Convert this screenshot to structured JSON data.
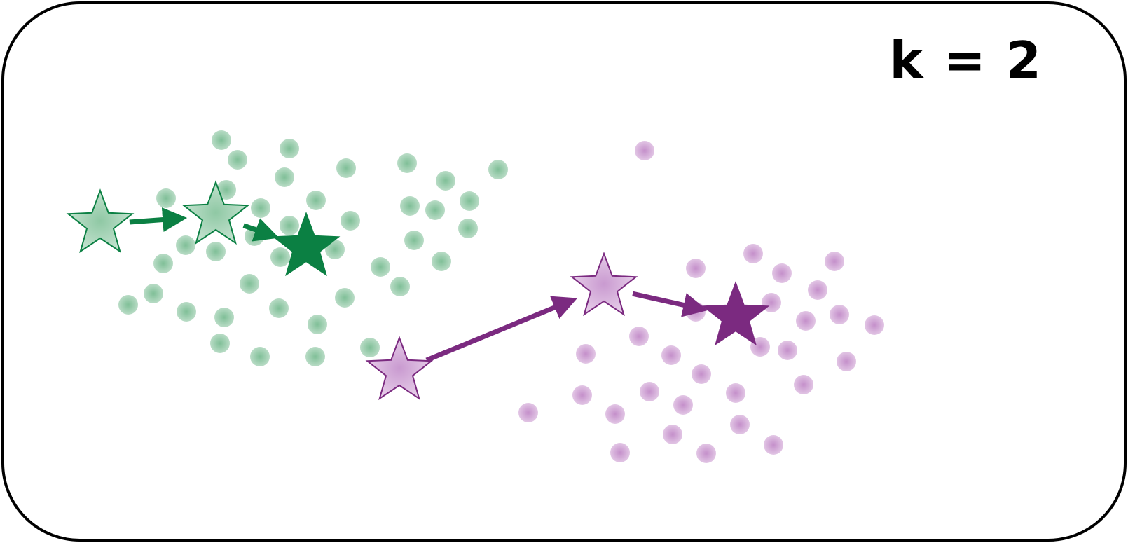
{
  "k_label": "k = 2",
  "colors": {
    "cluster_green": "#0b8043",
    "cluster_green_light": "#a8d5b8",
    "cluster_purple": "#7b2a80",
    "cluster_purple_light": "#d9b3dd"
  },
  "clusters": [
    {
      "name": "green",
      "centroid_path": [
        [
          143,
          320
        ],
        [
          308,
          308
        ],
        [
          437,
          353
        ]
      ],
      "points": [
        [
          316,
          200
        ],
        [
          339,
          228
        ],
        [
          413,
          212
        ],
        [
          494,
          240
        ],
        [
          581,
          233
        ],
        [
          711,
          242
        ],
        [
          237,
          283
        ],
        [
          323,
          271
        ],
        [
          406,
          253
        ],
        [
          451,
          286
        ],
        [
          636,
          258
        ],
        [
          670,
          287
        ],
        [
          372,
          297
        ],
        [
          413,
          322
        ],
        [
          500,
          315
        ],
        [
          585,
          294
        ],
        [
          621,
          300
        ],
        [
          668,
          326
        ],
        [
          363,
          337
        ],
        [
          265,
          350
        ],
        [
          308,
          359
        ],
        [
          400,
          367
        ],
        [
          478,
          356
        ],
        [
          591,
          343
        ],
        [
          233,
          376
        ],
        [
          543,
          381
        ],
        [
          630,
          373
        ],
        [
          356,
          405
        ],
        [
          571,
          409
        ],
        [
          183,
          435
        ],
        [
          219,
          419
        ],
        [
          266,
          445
        ],
        [
          320,
          453
        ],
        [
          398,
          440
        ],
        [
          492,
          425
        ],
        [
          453,
          463
        ],
        [
          314,
          490
        ],
        [
          371,
          509
        ],
        [
          450,
          509
        ],
        [
          528,
          496
        ]
      ]
    },
    {
      "name": "purple",
      "centroid_path": [
        [
          570,
          530
        ],
        [
          862,
          410
        ],
        [
          1050,
          452
        ]
      ],
      "points": [
        [
          920,
          215
        ],
        [
          1075,
          362
        ],
        [
          993,
          383
        ],
        [
          1116,
          390
        ],
        [
          1191,
          373
        ],
        [
          1167,
          414
        ],
        [
          1101,
          432
        ],
        [
          993,
          445
        ],
        [
          1150,
          458
        ],
        [
          1198,
          449
        ],
        [
          1248,
          464
        ],
        [
          912,
          480
        ],
        [
          1085,
          495
        ],
        [
          1124,
          500
        ],
        [
          836,
          505
        ],
        [
          958,
          507
        ],
        [
          1208,
          516
        ],
        [
          1001,
          534
        ],
        [
          1147,
          549
        ],
        [
          927,
          559
        ],
        [
          831,
          564
        ],
        [
          1050,
          561
        ],
        [
          975,
          578
        ],
        [
          754,
          589
        ],
        [
          878,
          591
        ],
        [
          1056,
          606
        ],
        [
          960,
          620
        ],
        [
          1104,
          635
        ],
        [
          885,
          646
        ],
        [
          1008,
          647
        ]
      ]
    }
  ]
}
